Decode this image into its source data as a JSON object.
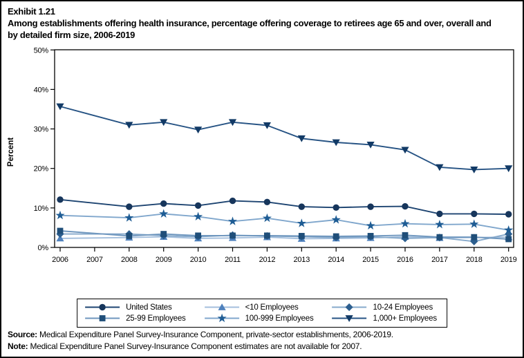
{
  "page": {
    "background": "#ffffff",
    "border_color": "#000000"
  },
  "header": {
    "exhibit_label": "Exhibit 1.21",
    "title": "Among establishments offering health insurance, percentage offering coverage to retirees age 65 and over, overall and by detailed firm size, 2006-2019"
  },
  "chart_data": {
    "type": "line",
    "ylabel": "Percent",
    "ylim": [
      0,
      50
    ],
    "ytick_labels": [
      "0%",
      "10%",
      "20%",
      "30%",
      "40%",
      "50%"
    ],
    "ytick_values": [
      0,
      10,
      20,
      30,
      40,
      50
    ],
    "x_axis_years": [
      2006,
      2007,
      2008,
      2009,
      2010,
      2011,
      2012,
      2013,
      2014,
      2015,
      2016,
      2017,
      2018,
      2019
    ],
    "x": [
      2006,
      2008,
      2009,
      2010,
      2011,
      2012,
      2013,
      2014,
      2015,
      2016,
      2017,
      2018,
      2019
    ],
    "missing_year": 2007,
    "grid": false,
    "legend_position": "bottom",
    "series": [
      {
        "name": "United States",
        "marker": "circle",
        "marker_color": "#17365C",
        "line_color": "#1C4370",
        "values": [
          12.1,
          10.3,
          11.1,
          10.6,
          11.8,
          11.5,
          10.3,
          10.1,
          10.3,
          10.4,
          8.5,
          8.5,
          8.4
        ]
      },
      {
        "name": "<10 Employees",
        "marker": "triangle-up",
        "marker_color": "#4F81BD",
        "line_color": "#A3BEDC",
        "values": [
          2.3,
          2.5,
          2.7,
          2.3,
          2.4,
          2.6,
          2.2,
          2.3,
          2.4,
          2.7,
          2.4,
          2.5,
          2.6
        ]
      },
      {
        "name": "10-24 Employees",
        "marker": "diamond",
        "marker_color": "#2D5F8F",
        "line_color": "#86A9CB",
        "values": [
          3.4,
          3.4,
          3.0,
          2.7,
          3.1,
          2.9,
          2.7,
          2.5,
          2.7,
          2.3,
          2.5,
          1.5,
          3.4
        ]
      },
      {
        "name": "25-99 Employees",
        "marker": "square",
        "marker_color": "#1F4E79",
        "line_color": "#6E96BE",
        "values": [
          4.2,
          2.9,
          3.4,
          3.0,
          3.0,
          3.0,
          2.9,
          2.8,
          2.9,
          3.1,
          2.6,
          2.6,
          2.1
        ]
      },
      {
        "name": "100-999 Employees",
        "marker": "star",
        "marker_color": "#1E5C94",
        "line_color": "#7FA6CC",
        "values": [
          8.1,
          7.5,
          8.5,
          7.8,
          6.6,
          7.4,
          6.1,
          7.0,
          5.5,
          6.0,
          5.8,
          5.9,
          4.4
        ]
      },
      {
        "name": "1,000+ Employees",
        "marker": "triangle-down",
        "marker_color": "#123A66",
        "line_color": "#255283",
        "values": [
          35.7,
          31.0,
          31.7,
          29.8,
          31.7,
          30.9,
          27.6,
          26.6,
          26.0,
          24.7,
          20.3,
          19.7,
          20.0
        ]
      }
    ]
  },
  "footer": {
    "source_label": "Source:",
    "source_text": " Medical Expenditure Panel Survey-Insurance Component, private-sector establishments, 2006-2019.",
    "note_label": "Note:",
    "note_text": " Medical Expenditure Panel Survey-Insurance Component estimates are not available for 2007."
  }
}
